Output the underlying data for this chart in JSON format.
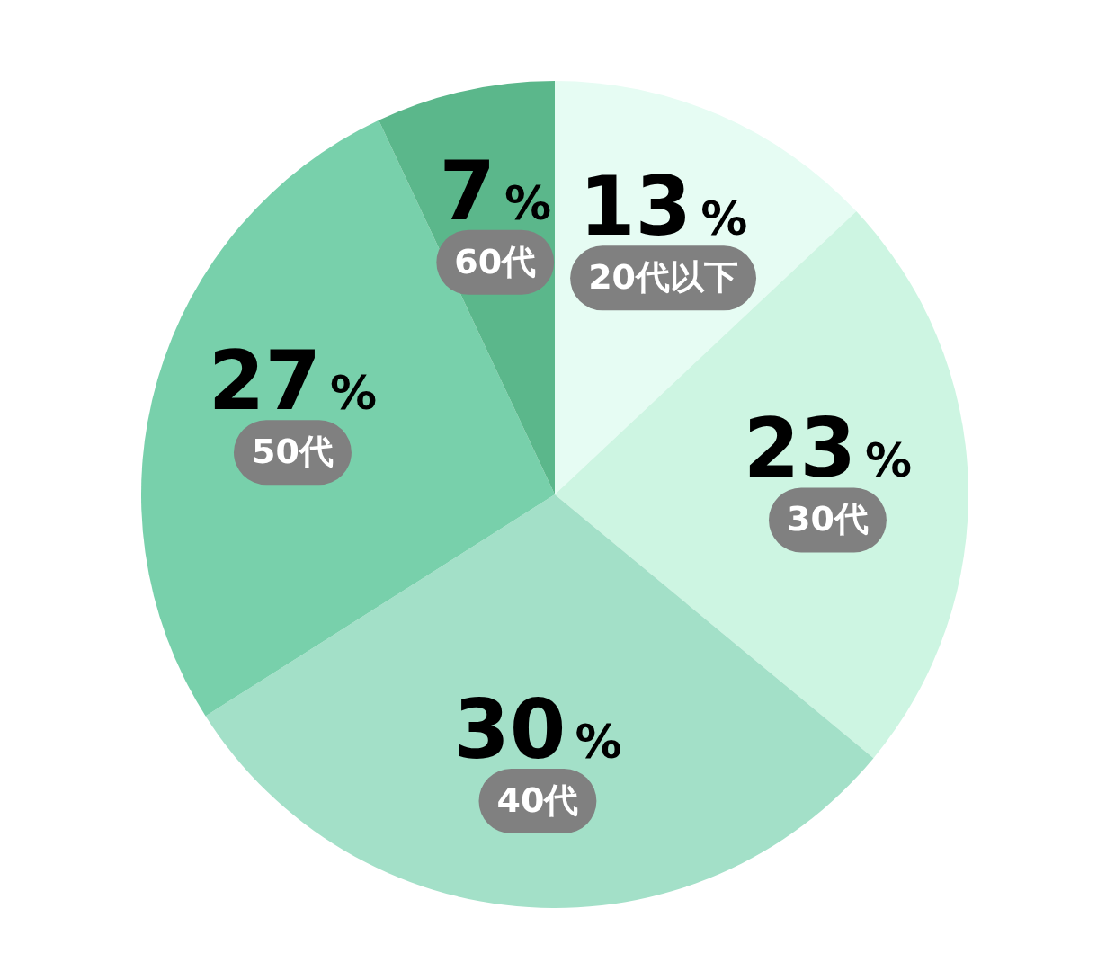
{
  "chart_data": {
    "type": "pie",
    "categories": [
      "20代以下",
      "30代",
      "40代",
      "50代",
      "60代"
    ],
    "values": [
      13,
      23,
      30,
      27,
      7
    ],
    "colors": [
      "#e6fcf3",
      "#cdf5e2",
      "#a3e0c8",
      "#78d0ab",
      "#5bb78b"
    ],
    "value_labels": [
      "13%",
      "23%",
      "30%",
      "27%",
      "7%"
    ]
  }
}
